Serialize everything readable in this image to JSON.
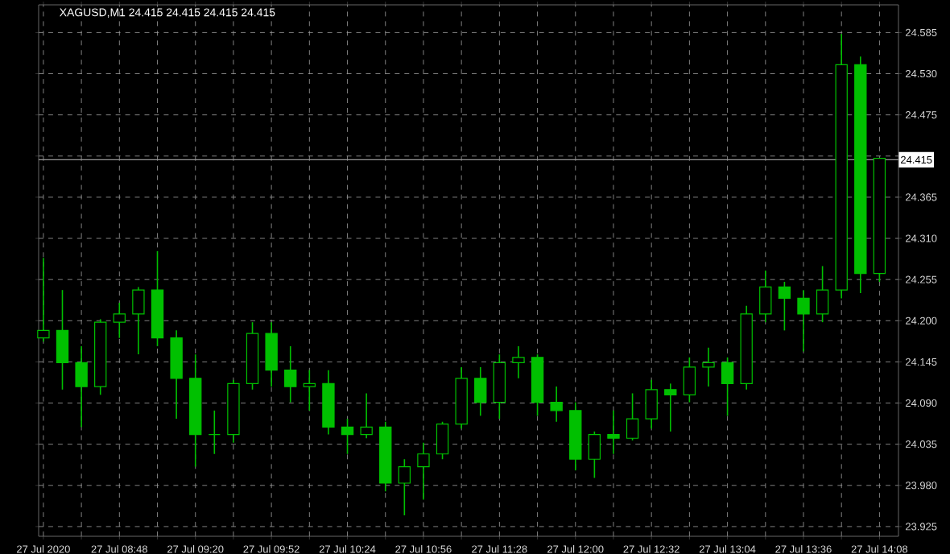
{
  "chart_data": {
    "type": "candlestick",
    "title": "XAGUSD,M1 24.415 24.415 24.415 24.415",
    "color": "#00c000",
    "grid": true,
    "x": [
      "2020-07-27T08:16",
      "2020-07-27T08:24",
      "2020-07-27T08:32",
      "2020-07-27T08:40",
      "2020-07-27T08:48",
      "2020-07-27T08:56",
      "2020-07-27T09:04",
      "2020-07-27T09:12",
      "2020-07-27T09:20",
      "2020-07-27T09:28",
      "2020-07-27T09:36",
      "2020-07-27T09:44",
      "2020-07-27T09:52",
      "2020-07-27T10:00",
      "2020-07-27T10:08",
      "2020-07-27T10:16",
      "2020-07-27T10:24",
      "2020-07-27T10:32",
      "2020-07-27T10:40",
      "2020-07-27T10:48",
      "2020-07-27T10:56",
      "2020-07-27T11:04",
      "2020-07-27T11:12",
      "2020-07-27T11:20",
      "2020-07-27T11:28",
      "2020-07-27T11:36",
      "2020-07-27T11:44",
      "2020-07-27T11:52",
      "2020-07-27T12:00",
      "2020-07-27T12:08",
      "2020-07-27T12:16",
      "2020-07-27T12:24",
      "2020-07-27T12:32",
      "2020-07-27T12:40",
      "2020-07-27T12:48",
      "2020-07-27T12:56",
      "2020-07-27T13:04",
      "2020-07-27T13:12",
      "2020-07-27T13:20",
      "2020-07-27T13:28",
      "2020-07-27T13:36",
      "2020-07-27T13:44",
      "2020-07-27T13:52",
      "2020-07-27T14:00",
      "2020-07-27T14:08"
    ],
    "ohlc": [
      [
        24.177,
        24.284,
        24.172,
        24.187
      ],
      [
        24.187,
        24.241,
        24.108,
        24.144
      ],
      [
        24.144,
        24.166,
        24.058,
        24.112
      ],
      [
        24.112,
        24.202,
        24.101,
        24.198
      ],
      [
        24.198,
        24.224,
        24.177,
        24.209
      ],
      [
        24.209,
        24.245,
        24.155,
        24.241
      ],
      [
        24.241,
        24.293,
        24.166,
        24.177
      ],
      [
        24.177,
        24.187,
        24.069,
        24.123
      ],
      [
        24.123,
        24.155,
        24.005,
        24.048
      ],
      [
        24.048,
        24.08,
        24.022,
        24.048
      ],
      [
        24.048,
        24.121,
        24.037,
        24.116
      ],
      [
        24.116,
        24.198,
        24.108,
        24.183
      ],
      [
        24.183,
        24.198,
        24.112,
        24.134
      ],
      [
        24.134,
        24.166,
        24.091,
        24.112
      ],
      [
        24.112,
        24.134,
        24.08,
        24.116
      ],
      [
        24.116,
        24.134,
        24.048,
        24.058
      ],
      [
        24.058,
        24.069,
        24.022,
        24.048
      ],
      [
        24.048,
        24.103,
        24.043,
        24.058
      ],
      [
        24.058,
        24.065,
        23.972,
        23.983
      ],
      [
        23.983,
        24.015,
        23.94,
        24.005
      ],
      [
        24.005,
        24.037,
        23.961,
        24.022
      ],
      [
        24.022,
        24.065,
        24.015,
        24.062
      ],
      [
        24.062,
        24.138,
        24.056,
        24.123
      ],
      [
        24.123,
        24.138,
        24.073,
        24.091
      ],
      [
        24.091,
        24.155,
        24.069,
        24.144
      ],
      [
        24.144,
        24.166,
        24.123,
        24.151
      ],
      [
        24.151,
        24.155,
        24.073,
        24.091
      ],
      [
        24.091,
        24.112,
        24.065,
        24.08
      ],
      [
        24.08,
        24.091,
        24.0,
        24.015
      ],
      [
        24.015,
        24.052,
        23.99,
        24.048
      ],
      [
        24.048,
        24.08,
        24.022,
        24.043
      ],
      [
        24.043,
        24.103,
        24.04,
        24.069
      ],
      [
        24.069,
        24.121,
        24.056,
        24.108
      ],
      [
        24.108,
        24.116,
        24.052,
        24.101
      ],
      [
        24.101,
        24.151,
        24.091,
        24.138
      ],
      [
        24.138,
        24.164,
        24.112,
        24.144
      ],
      [
        24.144,
        24.151,
        24.073,
        24.116
      ],
      [
        24.116,
        24.22,
        24.108,
        24.209
      ],
      [
        24.209,
        24.267,
        24.198,
        24.245
      ],
      [
        24.245,
        24.252,
        24.187,
        24.23
      ],
      [
        24.23,
        24.241,
        24.159,
        24.209
      ],
      [
        24.209,
        24.273,
        24.198,
        24.241
      ],
      [
        24.241,
        24.583,
        24.23,
        24.542
      ],
      [
        24.542,
        24.553,
        24.237,
        24.263
      ],
      [
        24.263,
        24.417,
        24.252,
        24.417
      ]
    ],
    "xlim": [
      "2020-07-27T08:14",
      "2020-07-27T14:16"
    ],
    "xticks": [
      {
        "value": "2020-07-27T08:16",
        "label": "27 Jul 2020"
      },
      {
        "value": "2020-07-27T08:32",
        "label": null
      },
      {
        "value": "2020-07-27T08:48",
        "label": "27 Jul 08:48"
      },
      {
        "value": "2020-07-27T09:04",
        "label": null
      },
      {
        "value": "2020-07-27T09:20",
        "label": "27 Jul 09:20"
      },
      {
        "value": "2020-07-27T09:36",
        "label": null
      },
      {
        "value": "2020-07-27T09:52",
        "label": "27 Jul 09:52"
      },
      {
        "value": "2020-07-27T10:08",
        "label": null
      },
      {
        "value": "2020-07-27T10:24",
        "label": "27 Jul 10:24"
      },
      {
        "value": "2020-07-27T10:40",
        "label": null
      },
      {
        "value": "2020-07-27T10:56",
        "label": "27 Jul 10:56"
      },
      {
        "value": "2020-07-27T11:12",
        "label": null
      },
      {
        "value": "2020-07-27T11:28",
        "label": "27 Jul 11:28"
      },
      {
        "value": "2020-07-27T11:44",
        "label": null
      },
      {
        "value": "2020-07-27T12:00",
        "label": "27 Jul 12:00"
      },
      {
        "value": "2020-07-27T12:16",
        "label": null
      },
      {
        "value": "2020-07-27T12:32",
        "label": "27 Jul 12:32"
      },
      {
        "value": "2020-07-27T12:48",
        "label": null
      },
      {
        "value": "2020-07-27T13:04",
        "label": "27 Jul 13:04"
      },
      {
        "value": "2020-07-27T13:20",
        "label": null
      },
      {
        "value": "2020-07-27T13:36",
        "label": "27 Jul 13:36"
      },
      {
        "value": "2020-07-27T13:52",
        "label": null
      },
      {
        "value": "2020-07-27T14:08",
        "label": "27 Jul 14:08"
      }
    ],
    "ylim": [
      23.912,
      24.622
    ],
    "yticks": [
      23.925,
      {
        "value": 23.98,
        "label": "23.980"
      },
      24.035,
      {
        "value": 24.09,
        "label": "24.090"
      },
      24.145,
      {
        "value": 24.2,
        "label": "24.200"
      },
      24.255,
      {
        "value": 24.31,
        "label": "24.310"
      },
      24.365,
      {
        "value": 24.42,
        "label": null
      },
      24.475,
      {
        "value": 24.53,
        "label": "24.530"
      },
      24.585
    ],
    "ref_lines": [
      {
        "axis": "y",
        "value": 24.415,
        "label": "24.415"
      }
    ]
  }
}
